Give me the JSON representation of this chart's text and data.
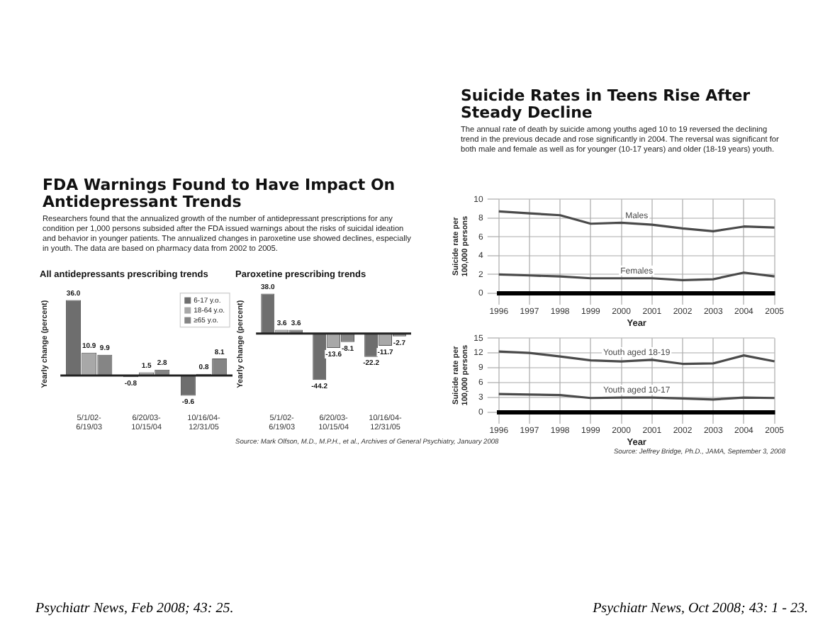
{
  "chart_data": [
    {
      "type": "other",
      "title": "FDA Warnings Found to Have Impact On Antidepressant Trends",
      "subtitle": "Researchers found that the annualized growth of the number of antidepressant prescriptions for any condition per 1,000 persons subsided after the FDA issued warnings about the risks of suicidal ideation and behavior in younger patients. The annualized changes in paroxetine use showed declines, especially in youth. The data are based on pharmacy data from 2002 to 2005.",
      "annotations": [
        "Psychiatr News, Feb 2008; 43: 25."
      ]
    },
    {
      "type": "bar",
      "title": "All antidepressants prescribing trends",
      "ylabel": "Yearly change (percent)",
      "categories": [
        "5/1/02-6/19/03",
        "6/20/03-10/15/04",
        "10/16/04-12/31/05"
      ],
      "legend": "top right",
      "tick_labels": "x",
      "series": [
        {
          "name": "6-17 y.o.",
          "color": "#6e6e6e",
          "values": [
            36.0,
            -0.8,
            -9.6
          ],
          "value_labels": [
            "36.0",
            "-0.8",
            "-9.6"
          ]
        },
        {
          "name": "18-64 y.o.",
          "color": "#a8a8a8",
          "values": [
            10.9,
            1.5,
            0.8
          ],
          "value_labels": [
            "10.9",
            "1.5",
            "0.8"
          ]
        },
        {
          "name": "≥65 y.o.",
          "color": "#858585",
          "values": [
            9.9,
            2.8,
            8.1
          ],
          "value_labels": [
            "9.9",
            "2.8",
            "8.1"
          ]
        }
      ]
    },
    {
      "type": "bar",
      "title": "Paroxetine prescribing trends",
      "ylabel": "Yearly change (percent)",
      "categories": [
        "5/1/02-6/19/03",
        "6/20/03-10/15/04",
        "10/16/04-12/31/05"
      ],
      "tick_labels": "x",
      "annotations": [
        "Source: Mark Olfson, M.D., M.P.H., et al., Archives of General Psychiatry, January 2008"
      ],
      "series": [
        {
          "color": "#6e6e6e",
          "values": [
            38.0,
            -44.2,
            -22.2
          ],
          "value_labels": [
            "38.0",
            "-44.2",
            "-22.2"
          ]
        },
        {
          "color": "#a8a8a8",
          "values": [
            3.6,
            -13.6,
            -11.7
          ],
          "value_labels": [
            "3.6",
            "-13.6",
            "-11.7"
          ]
        },
        {
          "color": "#858585",
          "values": [
            3.6,
            -8.1,
            -2.7
          ],
          "value_labels": [
            "3.6",
            "-8.1",
            "-2.7"
          ]
        }
      ]
    },
    {
      "type": "other",
      "title": "Suicide Rates in Teens Rise After Steady Decline",
      "subtitle": "The annual rate of death by suicide among youths aged 10 to 19 reversed the declining trend in the previous decade and rose significantly in 2004. The reversal was significant for both male and female as well as for younger (10-17 years) and older (18-19 years) youth.",
      "annotations": [
        "Psychiatr News, Oct 2008; 43: 1 - 23."
      ]
    },
    {
      "type": "line",
      "ylabel": "Suicide rate per 100,000 persons",
      "xlabel": "Year",
      "categories": [
        "1996",
        "1997",
        "1998",
        "1999",
        "2000",
        "2001",
        "2002",
        "2003",
        "2004",
        "2005"
      ],
      "ylim": [
        0,
        10
      ],
      "yticks": [
        0,
        2,
        4,
        6,
        8,
        10
      ],
      "grid": true,
      "series": [
        {
          "name": "Males",
          "color": "#4a4a4a",
          "values": [
            8.7,
            8.5,
            8.3,
            7.4,
            7.5,
            7.3,
            6.9,
            6.6,
            7.1,
            7.0
          ]
        },
        {
          "name": "Females",
          "color": "#4a4a4a",
          "values": [
            2.0,
            1.9,
            1.8,
            1.6,
            1.6,
            1.6,
            1.4,
            1.5,
            2.2,
            1.8
          ]
        }
      ]
    },
    {
      "type": "line",
      "ylabel": "Suicide rate per 100,000 persons",
      "xlabel": "Year",
      "categories": [
        "1996",
        "1997",
        "1998",
        "1999",
        "2000",
        "2001",
        "2002",
        "2003",
        "2004",
        "2005"
      ],
      "ylim": [
        0,
        15
      ],
      "yticks": [
        0,
        3,
        6,
        9,
        12,
        15
      ],
      "grid": true,
      "annotations": [
        "Source: Jeffrey Bridge, Ph.D., JAMA, September 3, 2008"
      ],
      "series": [
        {
          "name": "Youth aged 18-19",
          "color": "#4a4a4a",
          "values": [
            12.3,
            12.0,
            11.3,
            10.5,
            10.3,
            10.6,
            9.8,
            9.9,
            11.5,
            10.3
          ]
        },
        {
          "name": "Youth aged 10-17",
          "color": "#4a4a4a",
          "values": [
            3.7,
            3.6,
            3.5,
            2.9,
            3.0,
            3.0,
            2.8,
            2.6,
            3.0,
            2.9
          ]
        }
      ]
    }
  ]
}
